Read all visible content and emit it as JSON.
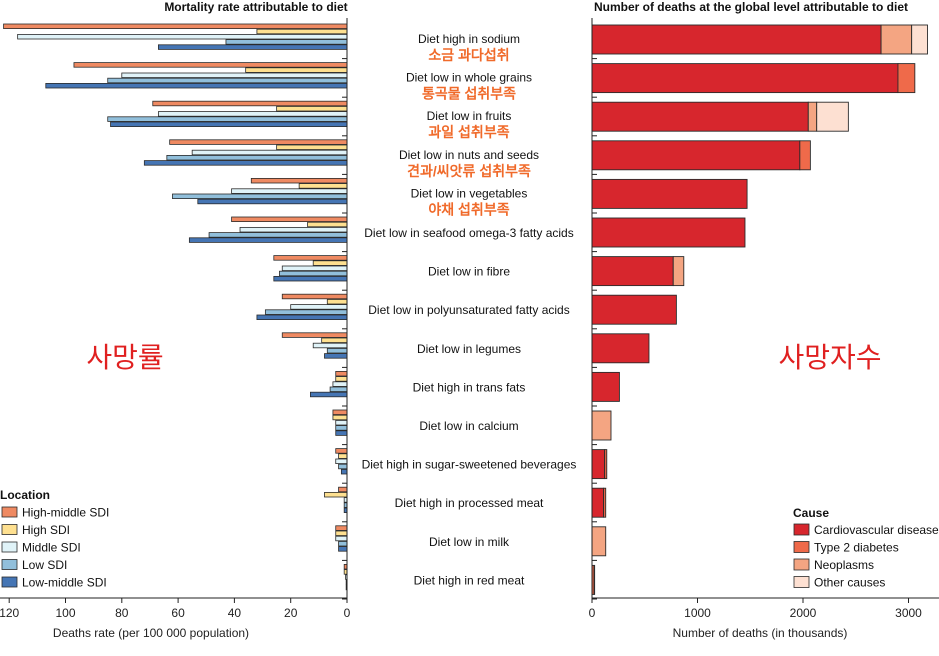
{
  "chart_data": [
    {
      "type": "bar",
      "orientation": "horizontal",
      "title": "Mortality rate attributable to diet",
      "xlabel": "Deaths rate (per 100 000 population)",
      "xlim": [
        0,
        125
      ],
      "x_reversed": true,
      "xticks": [
        120,
        100,
        80,
        60,
        40,
        20,
        0
      ],
      "categories": [
        "Diet high in sodium",
        "Diet low in whole grains",
        "Diet low in fruits",
        "Diet low in nuts and seeds",
        "Diet low in vegetables",
        "Diet low in seafood omega-3 fatty acids",
        "Diet low in fibre",
        "Diet low in polyunsaturated fatty acids",
        "Diet low in legumes",
        "Diet high in trans fats",
        "Diet low in calcium",
        "Diet high in sugar-sweetened beverages",
        "Diet high in processed meat",
        "Diet low in milk",
        "Diet high in red meat"
      ],
      "legend_title": "Location",
      "legend_position": "bottom-left",
      "series": [
        {
          "name": "High-middle SDI",
          "color": "#ef8a62",
          "values": [
            122,
            97,
            69,
            63,
            34,
            41,
            26,
            23,
            23,
            4,
            5,
            4,
            3,
            4,
            1
          ]
        },
        {
          "name": "High SDI",
          "color": "#fee090",
          "values": [
            32,
            36,
            25,
            25,
            17,
            14,
            12,
            7,
            9,
            4,
            5,
            3,
            8,
            4,
            1
          ]
        },
        {
          "name": "Middle SDI",
          "color": "#e0f3f8",
          "values": [
            117,
            80,
            67,
            55,
            41,
            38,
            23,
            20,
            12,
            5,
            4,
            4,
            1,
            4,
            0.5
          ]
        },
        {
          "name": "Low SDI",
          "color": "#91bfdb",
          "values": [
            43,
            85,
            85,
            64,
            62,
            49,
            24,
            29,
            7,
            6,
            4,
            3,
            1,
            3,
            0.3
          ]
        },
        {
          "name": "Low-middle SDI",
          "color": "#4575b4",
          "values": [
            67,
            107,
            84,
            72,
            53,
            56,
            26,
            32,
            8,
            13,
            4,
            2,
            1,
            3,
            0.3
          ]
        }
      ]
    },
    {
      "type": "bar",
      "orientation": "horizontal",
      "stacked": true,
      "title": "Number of deaths at the global level attributable to diet",
      "xlabel": "Number of deaths (in thousands)",
      "xlim": [
        0,
        3250
      ],
      "xticks": [
        0,
        1000,
        2000,
        3000
      ],
      "categories": [
        "Diet high in sodium",
        "Diet low in whole grains",
        "Diet low in fruits",
        "Diet low in nuts and seeds",
        "Diet low in vegetables",
        "Diet low in seafood omega-3 fatty acids",
        "Diet low in fibre",
        "Diet low in polyunsaturated fatty acids",
        "Diet low in legumes",
        "Diet high in trans fats",
        "Diet low in calcium",
        "Diet high in sugar-sweetened beverages",
        "Diet high in processed meat",
        "Diet low in milk",
        "Diet high in red meat"
      ],
      "legend_title": "Cause",
      "legend_position": "bottom-right",
      "series": [
        {
          "name": "Cardiovascular diseases",
          "color": "#d7262d",
          "values": [
            2740,
            2900,
            2050,
            1970,
            1470,
            1450,
            770,
            800,
            540,
            260,
            0,
            120,
            110,
            0,
            0
          ]
        },
        {
          "name": "Type 2 diabetes",
          "color": "#ef6a4a",
          "values": [
            0,
            160,
            0,
            100,
            0,
            0,
            0,
            0,
            0,
            0,
            0,
            20,
            20,
            0,
            20
          ]
        },
        {
          "name": "Neoplasms",
          "color": "#f4a582",
          "values": [
            290,
            0,
            80,
            0,
            0,
            0,
            100,
            0,
            0,
            0,
            180,
            0,
            0,
            130,
            5
          ]
        },
        {
          "name": "Other causes",
          "color": "#fde0d2",
          "values": [
            150,
            0,
            300,
            0,
            0,
            0,
            0,
            0,
            0,
            0,
            0,
            0,
            0,
            0,
            0
          ]
        }
      ]
    }
  ],
  "korean_labels": [
    "소금 과다섭취",
    "통곡물 섭취부족",
    "과일 섭취부족",
    "견과/씨앗류 섭취부족",
    "야채 섭취부족"
  ],
  "big_labels": {
    "left": "사망률",
    "right": "사망자수"
  }
}
